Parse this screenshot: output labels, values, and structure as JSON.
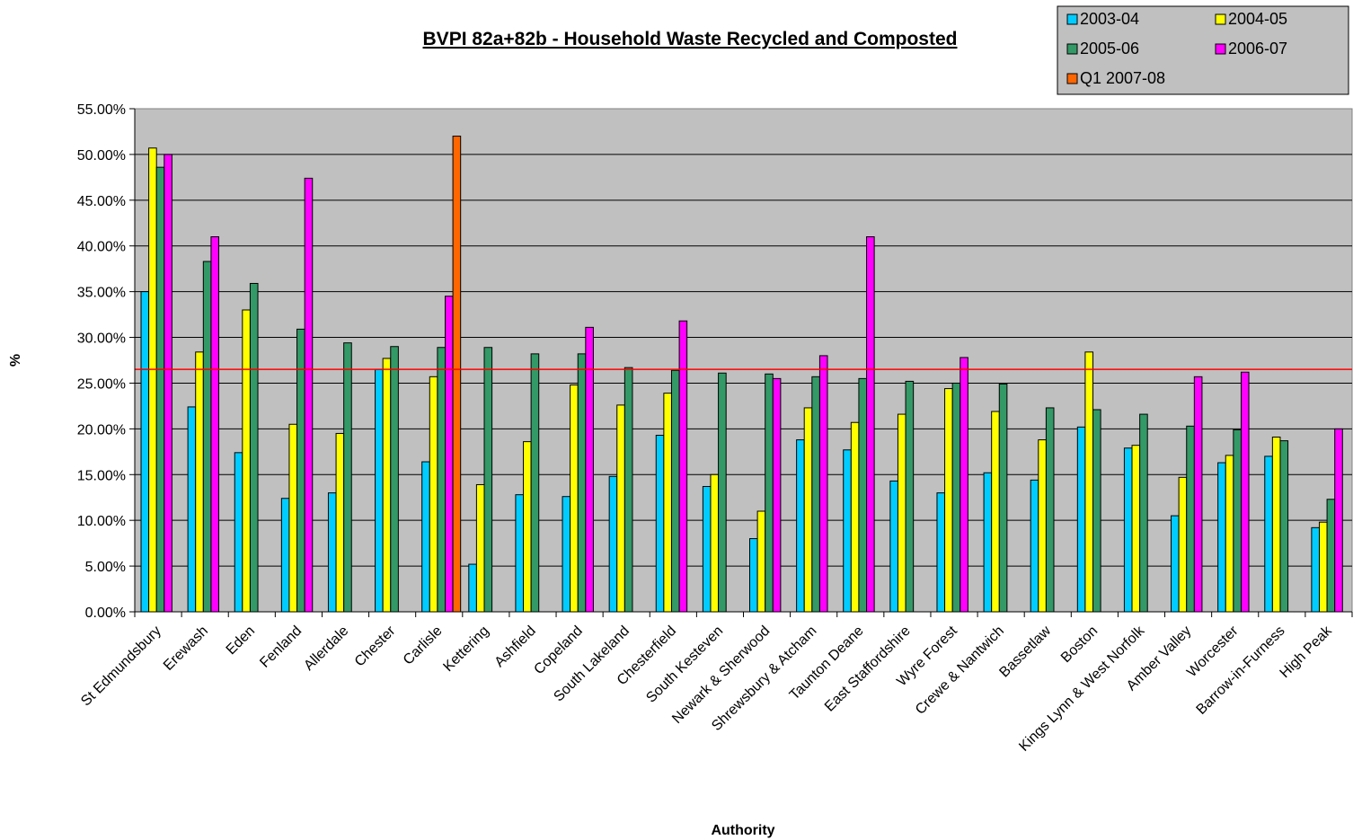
{
  "chart_data": {
    "type": "bar",
    "title": "BVPI 82a+82b - Household Waste Recycled and Composted",
    "xlabel": "Authority",
    "ylabel": "%",
    "ylim": [
      0,
      0.55
    ],
    "yticks": [
      "0.00%",
      "5.00%",
      "10.00%",
      "15.00%",
      "20.00%",
      "25.00%",
      "30.00%",
      "35.00%",
      "40.00%",
      "45.00%",
      "50.00%",
      "55.00%"
    ],
    "grid": true,
    "legend_position": "top-right",
    "reference_line": {
      "value": 0.265,
      "color": "#ff0000"
    },
    "categories": [
      "St Edmundsbury",
      "Erewash",
      "Eden",
      "Fenland",
      "Allerdale",
      "Chester",
      "Carlisle",
      "Kettering",
      "Ashfield",
      "Copeland",
      "South Lakeland",
      "Chesterfield",
      "South Kesteven",
      "Newark & Sherwood",
      "Shrewsbury & Atcham",
      "Taunton Deane",
      "East Staffordshire",
      "Wyre Forest",
      "Crewe & Nantwich",
      "Bassetlaw",
      "Boston",
      "Kings Lynn & West Norfolk",
      "Amber Valley",
      "Worcester",
      "Barrow-in-Furness",
      "High Peak"
    ],
    "series": [
      {
        "name": "2003-04",
        "color": "#00ccff",
        "values": [
          0.35,
          0.224,
          0.174,
          0.124,
          0.13,
          0.265,
          0.164,
          0.052,
          0.128,
          0.126,
          0.148,
          0.193,
          0.137,
          0.08,
          0.188,
          0.177,
          0.143,
          0.13,
          0.152,
          0.144,
          0.202,
          0.179,
          0.105,
          0.163,
          0.17,
          0.092
        ]
      },
      {
        "name": "2004-05",
        "color": "#ffff00",
        "values": [
          0.507,
          0.284,
          0.33,
          0.205,
          0.195,
          0.277,
          0.257,
          0.139,
          0.186,
          0.248,
          0.226,
          0.239,
          0.15,
          0.11,
          0.223,
          0.207,
          0.216,
          0.244,
          0.219,
          0.188,
          0.284,
          0.182,
          0.147,
          0.171,
          0.191,
          0.098
        ]
      },
      {
        "name": "2005-06",
        "color": "#339966",
        "values": [
          0.486,
          0.383,
          0.359,
          0.309,
          0.294,
          0.29,
          0.289,
          0.289,
          0.282,
          0.282,
          0.267,
          0.264,
          0.261,
          0.26,
          0.257,
          0.255,
          0.252,
          0.25,
          0.249,
          0.223,
          0.221,
          0.216,
          0.203,
          0.199,
          0.187,
          0.123
        ]
      },
      {
        "name": "2006-07",
        "color": "#ff00ff",
        "values": [
          0.5,
          0.41,
          null,
          0.474,
          null,
          null,
          0.345,
          null,
          null,
          0.311,
          null,
          0.318,
          null,
          0.255,
          0.28,
          0.41,
          null,
          0.278,
          null,
          null,
          null,
          null,
          0.257,
          0.262,
          null,
          0.2
        ]
      },
      {
        "name": "Q1 2007-08",
        "color": "#ff6600",
        "values": [
          null,
          null,
          null,
          null,
          null,
          null,
          0.52,
          null,
          null,
          null,
          null,
          null,
          null,
          null,
          null,
          null,
          null,
          null,
          null,
          null,
          null,
          null,
          null,
          null,
          null,
          null
        ]
      }
    ]
  }
}
